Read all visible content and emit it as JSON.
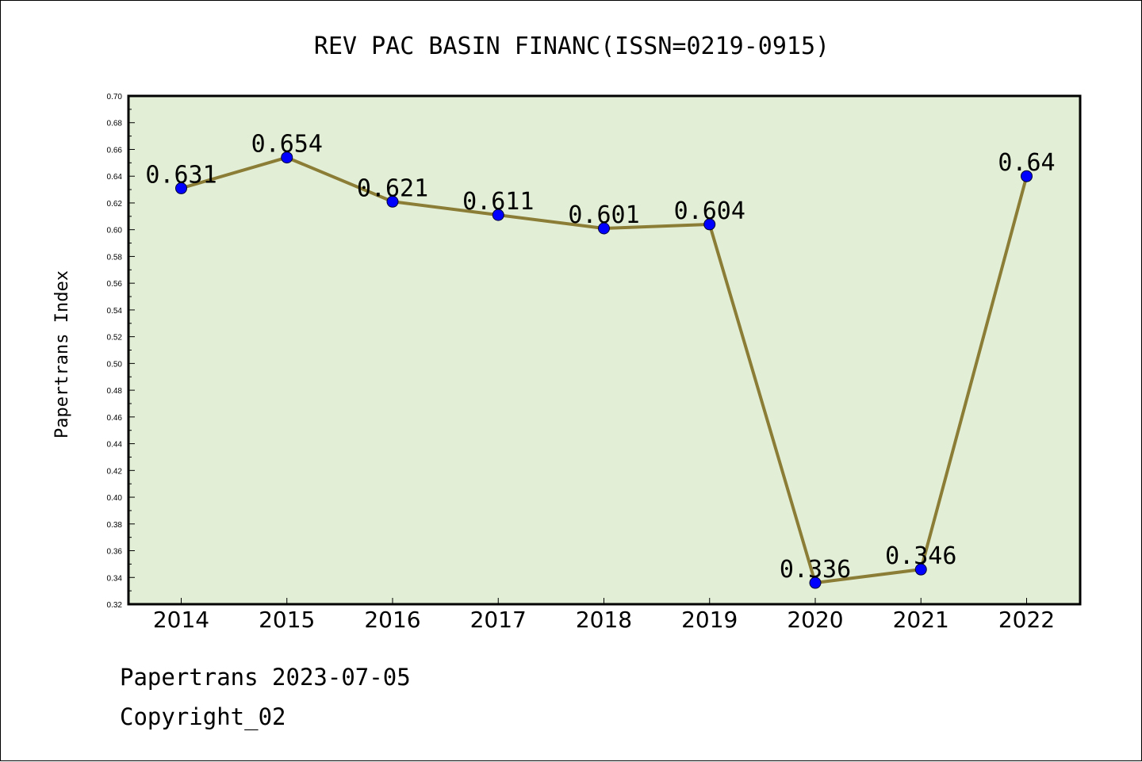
{
  "colors": {
    "plot_background": "#e2efd6",
    "line": "#8b7d36",
    "marker": "#0000ff"
  },
  "footer": {
    "date_line": "Papertrans 2023-07-05",
    "copyright": "Copyright_02"
  },
  "chart_data": {
    "type": "line",
    "title": "REV PAC BASIN FINANC(ISSN=0219-0915)",
    "xlabel": "",
    "ylabel": "Papertrans Index",
    "categories": [
      "2014",
      "2015",
      "2016",
      "2017",
      "2018",
      "2019",
      "2020",
      "2021",
      "2022"
    ],
    "series": [
      {
        "values": [
          0.631,
          0.654,
          0.621,
          0.611,
          0.601,
          0.604,
          0.336,
          0.346,
          0.64
        ],
        "labels": [
          "0.631",
          "0.654",
          "0.621",
          "0.611",
          "0.601",
          "0.604",
          "0.336",
          "0.346",
          "0.64"
        ]
      }
    ],
    "ylim": [
      0.32,
      0.7
    ],
    "yticks": [
      "0.32",
      "0.34",
      "0.36",
      "0.38",
      "0.40",
      "0.42",
      "0.44",
      "0.46",
      "0.48",
      "0.50",
      "0.52",
      "0.54",
      "0.56",
      "0.58",
      "0.60",
      "0.62",
      "0.64",
      "0.66",
      "0.68",
      "0.70"
    ],
    "grid": false,
    "legend": "none"
  }
}
